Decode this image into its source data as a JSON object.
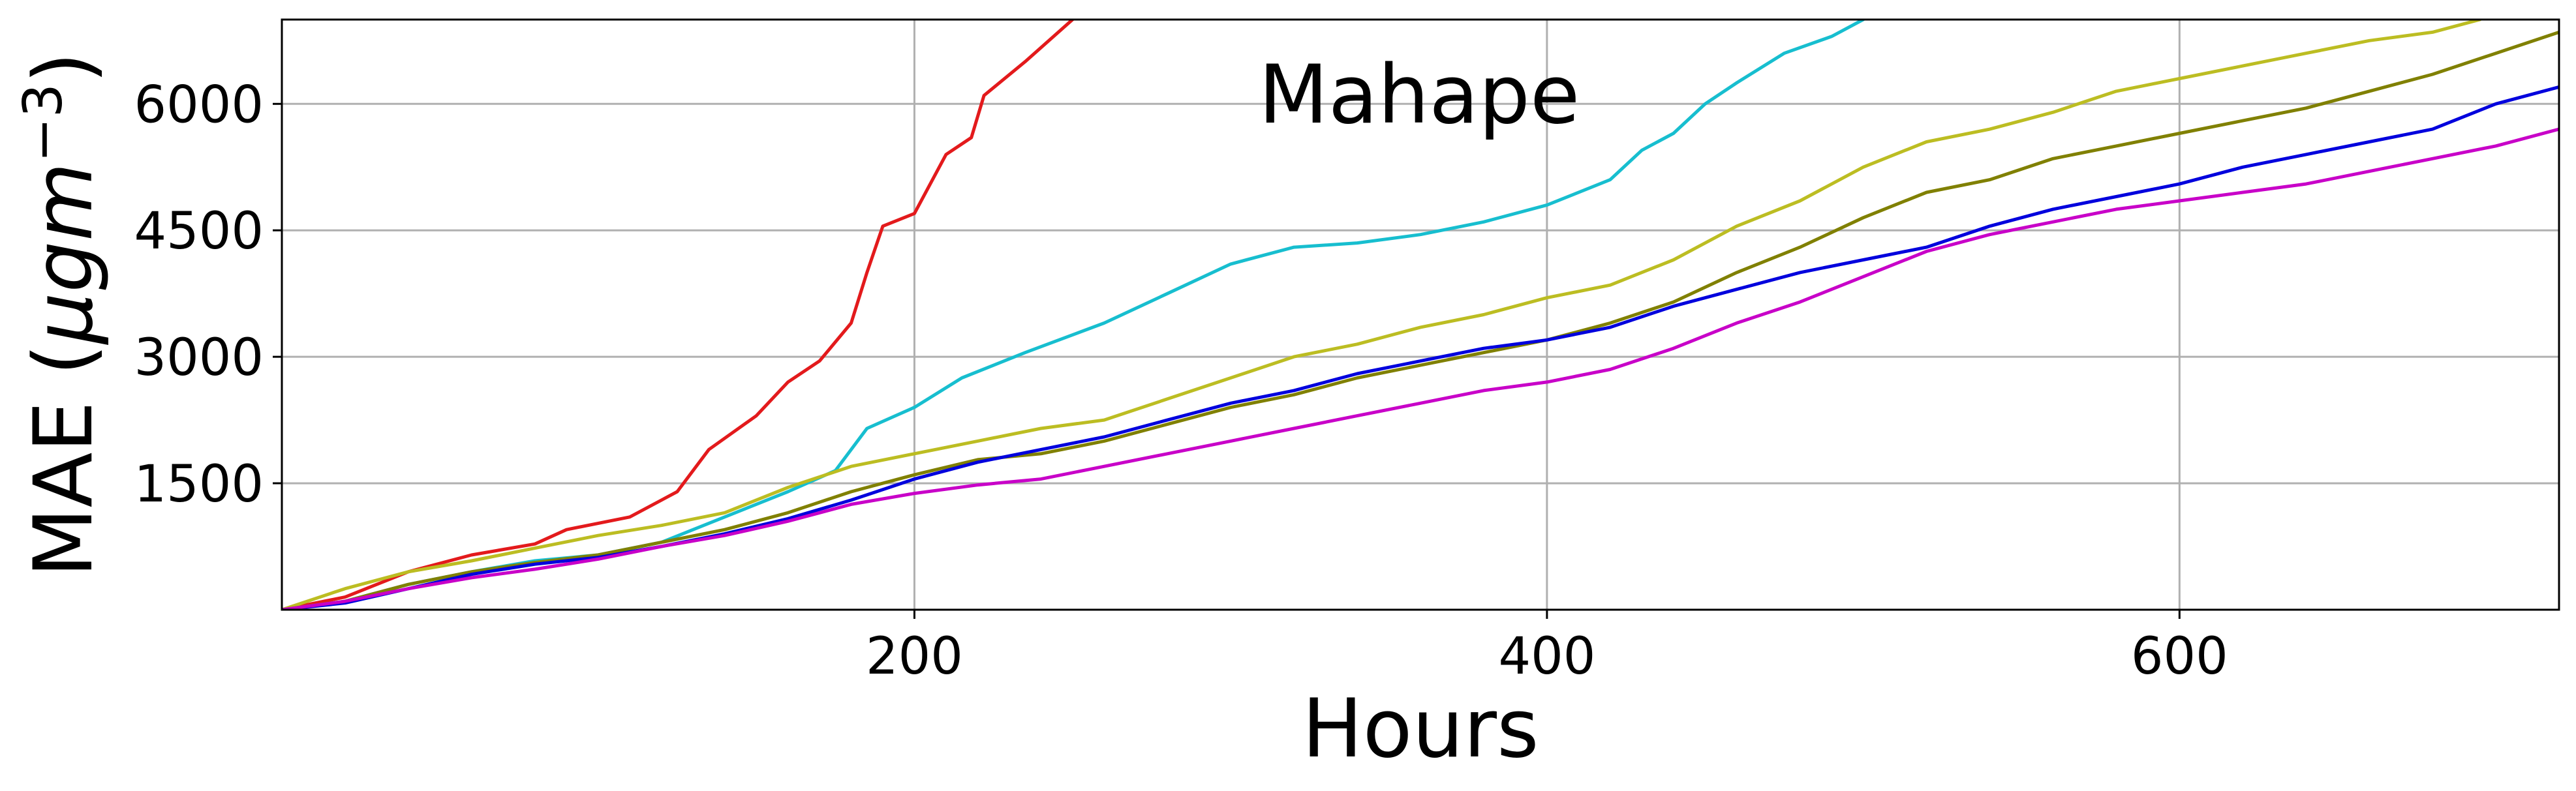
{
  "chart_data": {
    "type": "line",
    "title": "Mahape",
    "xlabel": "Hours",
    "ylabel_main": "MAE (",
    "ylabel_mu": "μgm",
    "ylabel_exp": "−3",
    "ylabel_close": ")",
    "xlim": [
      0,
      720
    ],
    "ylim": [
      0,
      7000
    ],
    "xticks": [
      200,
      400,
      600
    ],
    "yticks": [
      1500,
      3000,
      4500,
      6000
    ],
    "xtick_labels": [
      "200",
      "400",
      "600"
    ],
    "ytick_labels": [
      "1500",
      "3000",
      "4500",
      "6000"
    ],
    "grid": true,
    "series": [
      {
        "color": "#e31a1c",
        "points": [
          [
            0,
            0
          ],
          [
            20,
            150
          ],
          [
            40,
            450
          ],
          [
            60,
            650
          ],
          [
            80,
            780
          ],
          [
            90,
            950
          ],
          [
            110,
            1100
          ],
          [
            125,
            1400
          ],
          [
            135,
            1900
          ],
          [
            150,
            2300
          ],
          [
            160,
            2700
          ],
          [
            170,
            2950
          ],
          [
            180,
            3400
          ],
          [
            185,
            4000
          ],
          [
            190,
            4550
          ],
          [
            200,
            4700
          ],
          [
            210,
            5400
          ],
          [
            218,
            5600
          ],
          [
            222,
            6100
          ],
          [
            235,
            6500
          ],
          [
            250,
            7000
          ]
        ]
      },
      {
        "color": "#17becf",
        "points": [
          [
            0,
            0
          ],
          [
            20,
            100
          ],
          [
            40,
            300
          ],
          [
            60,
            450
          ],
          [
            80,
            580
          ],
          [
            100,
            650
          ],
          [
            120,
            800
          ],
          [
            140,
            1100
          ],
          [
            160,
            1400
          ],
          [
            175,
            1650
          ],
          [
            185,
            2150
          ],
          [
            200,
            2400
          ],
          [
            215,
            2750
          ],
          [
            235,
            3050
          ],
          [
            260,
            3400
          ],
          [
            280,
            3750
          ],
          [
            300,
            4100
          ],
          [
            320,
            4300
          ],
          [
            340,
            4350
          ],
          [
            360,
            4450
          ],
          [
            380,
            4600
          ],
          [
            400,
            4800
          ],
          [
            420,
            5100
          ],
          [
            430,
            5450
          ],
          [
            440,
            5650
          ],
          [
            450,
            6000
          ],
          [
            460,
            6250
          ],
          [
            475,
            6600
          ],
          [
            490,
            6800
          ],
          [
            500,
            7000
          ]
        ]
      },
      {
        "color": "#bcbd22",
        "points": [
          [
            0,
            0
          ],
          [
            20,
            250
          ],
          [
            40,
            450
          ],
          [
            60,
            580
          ],
          [
            80,
            730
          ],
          [
            100,
            880
          ],
          [
            120,
            1000
          ],
          [
            140,
            1150
          ],
          [
            160,
            1450
          ],
          [
            180,
            1700
          ],
          [
            200,
            1850
          ],
          [
            220,
            2000
          ],
          [
            240,
            2150
          ],
          [
            260,
            2250
          ],
          [
            280,
            2500
          ],
          [
            300,
            2750
          ],
          [
            320,
            3000
          ],
          [
            340,
            3150
          ],
          [
            360,
            3350
          ],
          [
            380,
            3500
          ],
          [
            400,
            3700
          ],
          [
            420,
            3850
          ],
          [
            440,
            4150
          ],
          [
            460,
            4550
          ],
          [
            480,
            4850
          ],
          [
            500,
            5250
          ],
          [
            520,
            5550
          ],
          [
            540,
            5700
          ],
          [
            560,
            5900
          ],
          [
            580,
            6150
          ],
          [
            600,
            6300
          ],
          [
            620,
            6450
          ],
          [
            640,
            6600
          ],
          [
            660,
            6750
          ],
          [
            680,
            6850
          ],
          [
            695,
            7000
          ]
        ]
      },
      {
        "color": "#808000",
        "points": [
          [
            0,
            0
          ],
          [
            20,
            100
          ],
          [
            40,
            300
          ],
          [
            60,
            450
          ],
          [
            80,
            560
          ],
          [
            100,
            650
          ],
          [
            120,
            800
          ],
          [
            140,
            950
          ],
          [
            160,
            1150
          ],
          [
            180,
            1400
          ],
          [
            200,
            1600
          ],
          [
            220,
            1780
          ],
          [
            240,
            1850
          ],
          [
            260,
            2000
          ],
          [
            280,
            2200
          ],
          [
            300,
            2400
          ],
          [
            320,
            2550
          ],
          [
            340,
            2750
          ],
          [
            360,
            2900
          ],
          [
            380,
            3050
          ],
          [
            400,
            3200
          ],
          [
            420,
            3400
          ],
          [
            440,
            3650
          ],
          [
            460,
            4000
          ],
          [
            480,
            4300
          ],
          [
            500,
            4650
          ],
          [
            520,
            4950
          ],
          [
            540,
            5100
          ],
          [
            560,
            5350
          ],
          [
            580,
            5500
          ],
          [
            600,
            5650
          ],
          [
            620,
            5800
          ],
          [
            640,
            5950
          ],
          [
            660,
            6150
          ],
          [
            680,
            6350
          ],
          [
            700,
            6600
          ],
          [
            720,
            6850
          ]
        ]
      },
      {
        "color": "#0000dd",
        "points": [
          [
            0,
            0
          ],
          [
            20,
            80
          ],
          [
            40,
            250
          ],
          [
            60,
            420
          ],
          [
            80,
            540
          ],
          [
            100,
            620
          ],
          [
            120,
            750
          ],
          [
            140,
            900
          ],
          [
            160,
            1080
          ],
          [
            180,
            1300
          ],
          [
            200,
            1550
          ],
          [
            220,
            1750
          ],
          [
            240,
            1900
          ],
          [
            260,
            2050
          ],
          [
            280,
            2250
          ],
          [
            300,
            2450
          ],
          [
            320,
            2600
          ],
          [
            340,
            2800
          ],
          [
            360,
            2950
          ],
          [
            380,
            3100
          ],
          [
            400,
            3200
          ],
          [
            420,
            3350
          ],
          [
            440,
            3600
          ],
          [
            460,
            3800
          ],
          [
            480,
            4000
          ],
          [
            500,
            4150
          ],
          [
            520,
            4300
          ],
          [
            540,
            4550
          ],
          [
            560,
            4750
          ],
          [
            580,
            4900
          ],
          [
            600,
            5050
          ],
          [
            620,
            5250
          ],
          [
            640,
            5400
          ],
          [
            660,
            5550
          ],
          [
            680,
            5700
          ],
          [
            700,
            6000
          ],
          [
            720,
            6200
          ]
        ]
      },
      {
        "color": "#c800c8",
        "points": [
          [
            0,
            0
          ],
          [
            20,
            100
          ],
          [
            40,
            250
          ],
          [
            60,
            380
          ],
          [
            80,
            480
          ],
          [
            100,
            600
          ],
          [
            120,
            750
          ],
          [
            140,
            880
          ],
          [
            160,
            1050
          ],
          [
            180,
            1250
          ],
          [
            200,
            1380
          ],
          [
            220,
            1480
          ],
          [
            240,
            1550
          ],
          [
            260,
            1700
          ],
          [
            280,
            1850
          ],
          [
            300,
            2000
          ],
          [
            320,
            2150
          ],
          [
            340,
            2300
          ],
          [
            360,
            2450
          ],
          [
            380,
            2600
          ],
          [
            400,
            2700
          ],
          [
            420,
            2850
          ],
          [
            440,
            3100
          ],
          [
            460,
            3400
          ],
          [
            480,
            3650
          ],
          [
            500,
            3950
          ],
          [
            520,
            4250
          ],
          [
            540,
            4450
          ],
          [
            560,
            4600
          ],
          [
            580,
            4750
          ],
          [
            600,
            4850
          ],
          [
            620,
            4950
          ],
          [
            640,
            5050
          ],
          [
            660,
            5200
          ],
          [
            680,
            5350
          ],
          [
            700,
            5500
          ],
          [
            720,
            5700
          ]
        ]
      }
    ]
  }
}
